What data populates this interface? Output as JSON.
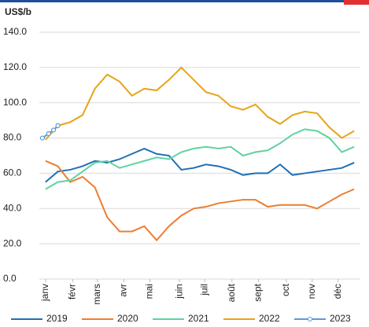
{
  "chart_data": {
    "type": "line",
    "y_label": "US$/b",
    "x": [
      1,
      3,
      5,
      7,
      9,
      11,
      13,
      15,
      17,
      19,
      21,
      23,
      25,
      27,
      29,
      31,
      33,
      35,
      37,
      39,
      41,
      43,
      45,
      47,
      49,
      51
    ],
    "xlim": [
      0,
      52
    ],
    "xticks": [
      {
        "value": 1,
        "label": "janv"
      },
      {
        "value": 5.4,
        "label": "févr"
      },
      {
        "value": 9.4,
        "label": "mars"
      },
      {
        "value": 13.7,
        "label": "avr"
      },
      {
        "value": 17.9,
        "label": "mai"
      },
      {
        "value": 22.7,
        "label": "juin"
      },
      {
        "value": 26.8,
        "label": "juil"
      },
      {
        "value": 31.2,
        "label": "août"
      },
      {
        "value": 35.5,
        "label": "sept"
      },
      {
        "value": 40,
        "label": "oct"
      },
      {
        "value": 44.2,
        "label": "nov"
      },
      {
        "value": 48.4,
        "label": "déc"
      }
    ],
    "ylim": [
      0,
      140
    ],
    "yticks": [
      {
        "value": 0,
        "label": "0.0"
      },
      {
        "value": 20,
        "label": "20.0"
      },
      {
        "value": 40,
        "label": "40.0"
      },
      {
        "value": 60,
        "label": "60.0"
      },
      {
        "value": 80,
        "label": "80.0"
      },
      {
        "value": 100,
        "label": "100.0"
      },
      {
        "value": 120,
        "label": "120.0"
      },
      {
        "value": 140,
        "label": "140.0"
      }
    ],
    "grid": true,
    "series": [
      {
        "name": "2019",
        "color": "#1f6fb5",
        "values": [
          55,
          61,
          62,
          64,
          67,
          66,
          68,
          71,
          74,
          71,
          70,
          62,
          63,
          65,
          64,
          62,
          59,
          60,
          60,
          65,
          59,
          60,
          61,
          62,
          63,
          66
        ]
      },
      {
        "name": "2020",
        "color": "#ed7d31",
        "values": [
          67,
          64,
          55,
          58,
          52,
          35,
          27,
          27,
          30,
          22,
          30,
          36,
          40,
          41,
          43,
          44,
          45,
          45,
          41,
          42,
          42,
          42,
          40,
          44,
          48,
          51
        ]
      },
      {
        "name": "2021",
        "color": "#5fd3a0",
        "values": [
          51,
          55,
          56,
          61,
          66,
          67,
          63,
          65,
          67,
          69,
          68,
          72,
          74,
          75,
          74,
          75,
          70,
          72,
          73,
          77,
          82,
          85,
          84,
          80,
          72,
          75
        ]
      },
      {
        "name": "2022",
        "color": "#e8a317",
        "values": [
          79,
          87,
          89,
          93,
          108,
          116,
          112,
          104,
          108,
          107,
          113,
          120,
          113,
          106,
          104,
          98,
          96,
          99,
          92,
          88,
          93,
          95,
          94,
          86,
          80,
          84
        ]
      },
      {
        "name": "2023",
        "color": "#5b9bd5",
        "marker": "circle",
        "x": [
          0.5,
          1.5,
          2.3,
          3
        ],
        "values": [
          80,
          82.5,
          84.5,
          87
        ]
      }
    ]
  }
}
